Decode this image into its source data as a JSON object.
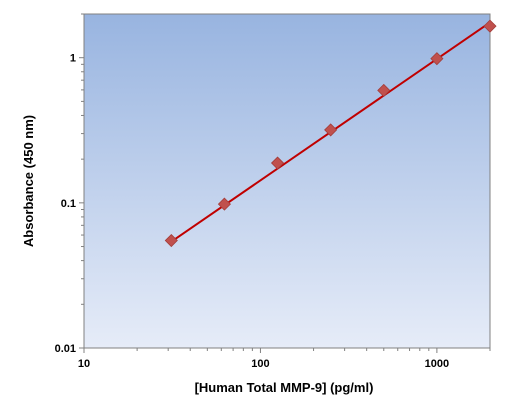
{
  "chart_data": {
    "type": "scatter",
    "xscale": "log",
    "yscale": "log",
    "xlabel": "[Human Total MMP-9] (pg/ml)",
    "ylabel": "Absorbance (450 nm)",
    "xlim": [
      10,
      2000
    ],
    "ylim": [
      0.01,
      2
    ],
    "x_ticks": [
      10,
      100,
      1000
    ],
    "x_tick_labels": [
      "10",
      "100",
      "1000"
    ],
    "y_ticks": [
      0.01,
      0.1,
      1
    ],
    "y_tick_labels": [
      "0.01",
      "0.1",
      "1"
    ],
    "grid": false,
    "legend": "none",
    "series": [
      {
        "x": [
          31.25,
          62.5,
          125,
          250,
          500,
          1000,
          2000
        ],
        "y": [
          0.055,
          0.098,
          0.188,
          0.318,
          0.595,
          0.985,
          1.65
        ],
        "marker": "diamond",
        "color": "#c0504d"
      }
    ],
    "fit_line": {
      "type": "linear-log-log",
      "x": [
        31.25,
        2000
      ],
      "y": [
        0.054,
        1.75
      ],
      "color": "#c00000"
    },
    "background_gradient": [
      "#98b4e0",
      "#e6ecf8"
    ]
  }
}
